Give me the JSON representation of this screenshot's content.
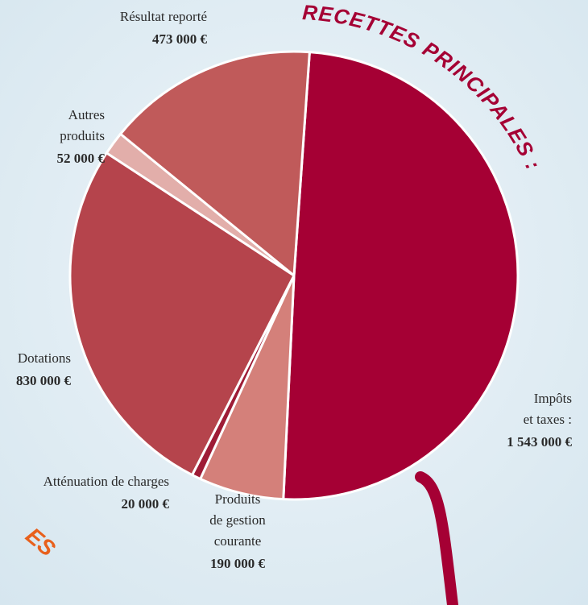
{
  "chart_data": {
    "type": "pie",
    "title": "RECETTES PRINCIPALES :",
    "annotation": "ES",
    "categories": [
      [
        "Impôts",
        "et taxes :"
      ],
      [
        "Produits",
        "de gestion",
        "courante"
      ],
      [
        "Atténuation de charges"
      ],
      [
        "Dotations"
      ],
      [
        "Autres",
        "produits"
      ],
      [
        "Résultat reporté"
      ]
    ],
    "values": [
      1543000,
      190000,
      20000,
      830000,
      52000,
      473000
    ],
    "value_labels": [
      "1 543 000 €",
      "190 000 €",
      "20 000 €",
      "830 000 €",
      "52 000 €",
      "473 000 €"
    ],
    "colors": [
      "#a50034",
      "#d4807a",
      "#9e1c36",
      "#b5444c",
      "#e2aeaa",
      "#c05a5a"
    ]
  }
}
